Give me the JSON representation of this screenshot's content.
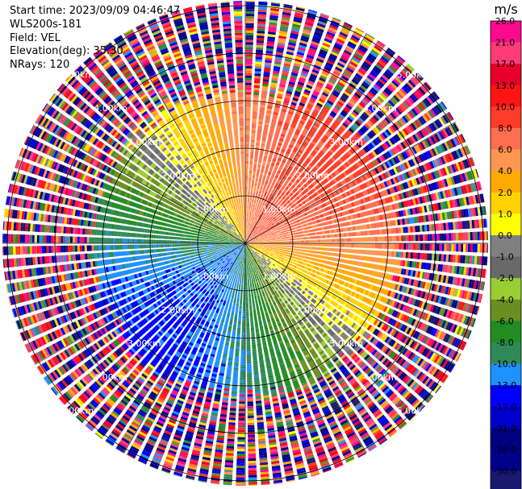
{
  "header": {
    "start_time": "Start time: 2023/09/09 04:46:47",
    "instrument": "WLS200s-181",
    "field": "Field: VEL",
    "elevation": "Elevation(deg): 35.30",
    "nrays": "NRays: 120"
  },
  "chart_data": {
    "type": "heatmap",
    "subtype": "ppi-polar",
    "field": "VEL",
    "instrument": "WLS200s-181",
    "start_time": "2023/09/09 04:46:47",
    "elevation_deg": 35.3,
    "n_rays": 120,
    "range_rings_km": [
      1.0,
      2.0,
      3.0,
      4.0,
      5.0
    ],
    "ring_labels": [
      "1.00km",
      "2.00km",
      "3.00km",
      "4.00km",
      "5.00km"
    ],
    "max_range_km": 5.1,
    "valid_data_range_km": 3.2,
    "colorbar": {
      "unit": "m/s",
      "ticks": [
        "26.0",
        "21.0",
        "17.0",
        "13.0",
        "10.0",
        "8.0",
        "6.0",
        "4.0",
        "2.0",
        "1.0",
        "0.0",
        "-1.0",
        "-2.0",
        "-4.0",
        "-6.0",
        "-8.0",
        "-10.0",
        "-13.0",
        "-17.0",
        "-21.0",
        "-26.0",
        "-30.0"
      ],
      "colors": [
        "#ff0a8c",
        "#ff3c78",
        "#e8002a",
        "#ff1414",
        "#ff3c28",
        "#ff6e50",
        "#ff9650",
        "#ffaa00",
        "#ffd200",
        "#ffff00",
        "#808080",
        "#696969",
        "#9acd32",
        "#6b8e23",
        "#228b22",
        "#2e8b57",
        "#1e90ff",
        "#0000ff",
        "#0000cd",
        "#000080",
        "#00008b",
        "#191970"
      ],
      "colors_note": "colour of the bin between each tick and the next lower tick"
    },
    "wind_pattern": {
      "toward_azimuth_deg": 45,
      "away_azimuth_deg": 225,
      "peak_toward_velocity_ms": 8,
      "peak_away_velocity_ms": -9
    },
    "grid": true
  },
  "colors": {
    "ring_line": "#000000",
    "ring_label": "#ffffff",
    "background": "#ffffff"
  }
}
